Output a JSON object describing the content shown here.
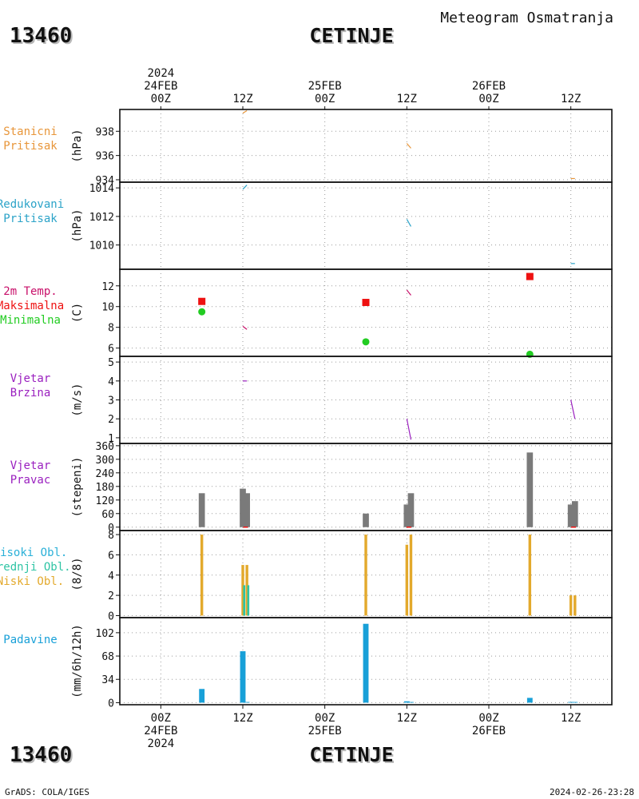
{
  "header": {
    "station_id": "13460",
    "station_name": "CETINJE",
    "meteogram_title": "Meteogram Osmatranja"
  },
  "footer": {
    "left": "GrADS: COLA/IGES",
    "right": "2024-02-26-23:28"
  },
  "colors": {
    "pressure": "#e8963a",
    "reduced": "#2ba3c8",
    "temp": "#c8106a",
    "tmax": "#ee1111",
    "tmin": "#22cc22",
    "wind": "#9a1fbf",
    "dir": "#7a7a7a",
    "low_cloud": "#e3a92c",
    "mid_cloud": "#2ec4a4",
    "high_cloud": "#2ab0d8",
    "precip": "#18a0d8"
  },
  "chart_data": {
    "type": "meteogram",
    "x_axis": {
      "unit": "hours since 2024-02-24 00Z",
      "xlim": [
        -6,
        66
      ],
      "top_ticks": [
        {
          "x": 0,
          "lines": [
            "2024",
            "24FEB",
            "00Z"
          ]
        },
        {
          "x": 12,
          "lines": [
            "12Z"
          ]
        },
        {
          "x": 24,
          "lines": [
            "25FEB",
            "00Z"
          ]
        },
        {
          "x": 36,
          "lines": [
            "12Z"
          ]
        },
        {
          "x": 48,
          "lines": [
            "26FEB",
            "00Z"
          ]
        },
        {
          "x": 60,
          "lines": [
            "12Z"
          ]
        }
      ],
      "bottom_ticks": [
        {
          "x": 0,
          "lines": [
            "00Z",
            "24FEB",
            "2024"
          ]
        },
        {
          "x": 12,
          "lines": [
            "12Z"
          ]
        },
        {
          "x": 24,
          "lines": [
            "00Z",
            "25FEB"
          ]
        },
        {
          "x": 36,
          "lines": [
            "12Z"
          ]
        },
        {
          "x": 48,
          "lines": [
            "00Z",
            "26FEB"
          ]
        },
        {
          "x": 60,
          "lines": [
            "12Z"
          ]
        }
      ]
    },
    "panels": [
      {
        "id": "station-pressure",
        "label_lines": [
          {
            "text": "Stanicni",
            "color": "#e8963a"
          },
          {
            "text": "Pritisak",
            "color": "#e8963a"
          }
        ],
        "unit": "(hPa)",
        "ylim": [
          933.8,
          939.8
        ],
        "yticks": [
          934,
          936,
          938
        ],
        "series": [
          {
            "type": "line",
            "color": "#e8963a",
            "segments": [
              [
                [
                  12,
                  939.5
                ],
                [
                  12.6,
                  939.7
                ]
              ],
              [
                [
                  36,
                  937.0
                ],
                [
                  36.6,
                  936.6
                ]
              ],
              [
                [
                  60,
                  934.1
                ],
                [
                  60.6,
                  934.1
                ]
              ]
            ]
          }
        ]
      },
      {
        "id": "reduced-pressure",
        "label_lines": [
          {
            "text": "Redukovani",
            "color": "#2ba3c8"
          },
          {
            "text": "Pritisak",
            "color": "#2ba3c8"
          }
        ],
        "unit": "(hPa)",
        "ylim": [
          1008.3,
          1014.4
        ],
        "yticks": [
          1010,
          1012,
          1014
        ],
        "series": [
          {
            "type": "line",
            "color": "#2ba3c8",
            "segments": [
              [
                [
                  12,
                  1013.9
                ],
                [
                  12.6,
                  1014.2
                ]
              ],
              [
                [
                  36,
                  1011.8
                ],
                [
                  36.6,
                  1011.3
                ]
              ],
              [
                [
                  60,
                  1008.7
                ],
                [
                  60.6,
                  1008.7
                ]
              ]
            ]
          }
        ]
      },
      {
        "id": "temperature",
        "label_lines": [
          {
            "text": "2m Temp.",
            "color": "#c8106a"
          },
          {
            "text": "Maksimalna",
            "color": "#ee1111"
          },
          {
            "text": "Minimalna",
            "color": "#22cc22"
          }
        ],
        "unit": "(C)",
        "ylim": [
          5.2,
          13.6
        ],
        "yticks": [
          6,
          8,
          10,
          12
        ],
        "series": [
          {
            "type": "line",
            "color": "#c8106a",
            "segments": [
              [
                [
                  12,
                  8.1
                ],
                [
                  12.6,
                  7.8
                ]
              ],
              [
                [
                  36,
                  11.6
                ],
                [
                  36.6,
                  11.1
                ]
              ]
            ]
          },
          {
            "type": "squares",
            "color": "#ee1111",
            "points": [
              [
                6,
                10.5
              ],
              [
                30,
                10.4
              ],
              [
                54,
                12.9
              ]
            ]
          },
          {
            "type": "circles",
            "color": "#22cc22",
            "points": [
              [
                6,
                9.5
              ],
              [
                30,
                6.6
              ],
              [
                54,
                5.4
              ]
            ]
          }
        ]
      },
      {
        "id": "wind-speed",
        "label_lines": [
          {
            "text": "Vjetar",
            "color": "#9a1fbf"
          },
          {
            "text": "Brzina",
            "color": "#9a1fbf"
          }
        ],
        "unit": "(m/s)",
        "ylim": [
          0.7,
          5.3
        ],
        "yticks": [
          1,
          2,
          3,
          4,
          5
        ],
        "series": [
          {
            "type": "line",
            "color": "#9a1fbf",
            "segments": [
              [
                [
                  12,
                  4.0
                ],
                [
                  12.6,
                  4.0
                ]
              ],
              [
                [
                  36,
                  2.0
                ],
                [
                  36.6,
                  0.9
                ]
              ],
              [
                [
                  60,
                  3.0
                ],
                [
                  60.6,
                  2.0
                ]
              ]
            ]
          }
        ]
      },
      {
        "id": "wind-direction",
        "label_lines": [
          {
            "text": "Vjetar",
            "color": "#9a1fbf"
          },
          {
            "text": "Pravac",
            "color": "#9a1fbf"
          }
        ],
        "unit": "(stepeni)",
        "ylim": [
          -15,
          370
        ],
        "yticks": [
          0,
          60,
          120,
          180,
          240,
          300,
          360
        ],
        "series": [
          {
            "type": "bars",
            "color": "#7a7a7a",
            "width": 0.9,
            "points": [
              [
                6,
                150
              ],
              [
                12,
                170
              ],
              [
                12.6,
                150
              ],
              [
                30,
                60
              ],
              [
                36,
                100
              ],
              [
                36.6,
                150
              ],
              [
                54,
                330
              ],
              [
                60,
                100
              ],
              [
                60.6,
                115
              ]
            ]
          },
          {
            "type": "ticks",
            "color": "#ee1111",
            "points": [
              [
                12.4,
                0
              ],
              [
                36.3,
                0
              ],
              [
                60.4,
                0
              ]
            ]
          }
        ]
      },
      {
        "id": "cloud-cover",
        "label_lines": [
          {
            "text": "Visoki Obl.",
            "color": "#2ab0d8"
          },
          {
            "text": "Srednji Obl.",
            "color": "#2ec4a4"
          },
          {
            "text": "Niski Obl.",
            "color": "#e3a92c"
          }
        ],
        "unit": "(8/8)",
        "ylim": [
          -0.2,
          8.4
        ],
        "yticks": [
          0,
          2,
          4,
          6,
          8
        ],
        "series": [
          {
            "type": "bars",
            "name": "Niski Obl.",
            "color": "#e3a92c",
            "width": 0.4,
            "points": [
              [
                6,
                8
              ],
              [
                12,
                5
              ],
              [
                12.6,
                5
              ],
              [
                30,
                8
              ],
              [
                36,
                7
              ],
              [
                36.6,
                8
              ],
              [
                54,
                8
              ],
              [
                60,
                2
              ],
              [
                60.6,
                2
              ]
            ]
          },
          {
            "type": "bars",
            "name": "Srednji Obl.",
            "color": "#2ec4a4",
            "width": 0.3,
            "points": [
              [
                12.2,
                3
              ],
              [
                12.8,
                3
              ]
            ]
          }
        ]
      },
      {
        "id": "precipitation",
        "label_lines": [
          {
            "text": "Padavine",
            "color": "#18a0d8"
          }
        ],
        "unit": "(mm/6h/12h)",
        "ylim": [
          -3,
          124
        ],
        "yticks": [
          0,
          34,
          68,
          102
        ],
        "series": [
          {
            "type": "bars",
            "color": "#18a0d8",
            "width": 0.8,
            "points": [
              [
                6,
                20
              ],
              [
                12,
                75
              ],
              [
                12.6,
                1
              ],
              [
                30,
                115
              ],
              [
                36,
                2
              ],
              [
                36.6,
                1
              ],
              [
                54,
                7
              ],
              [
                60,
                1
              ],
              [
                60.6,
                1
              ]
            ]
          }
        ]
      }
    ]
  }
}
